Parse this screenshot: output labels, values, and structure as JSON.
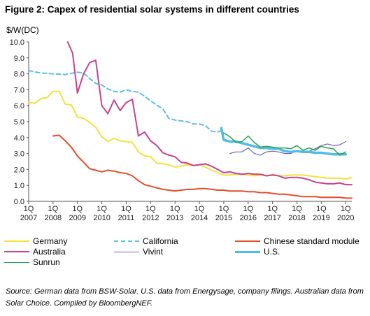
{
  "figure": {
    "title": "Figure 2: Capex of residential solar systems in different countries",
    "source": "Source: German data from BSW-Solar. U.S. data from Energysage, company filings. Australian data from Solar Choice. Compiled by BloombergNEF."
  },
  "chart_data": {
    "type": "line",
    "ylabel": "$/W(DC)",
    "xlabel": "",
    "ylim": [
      0,
      10
    ],
    "xlim": [
      2007.0,
      2020.25
    ],
    "y_ticks": [
      "0.0",
      "1.0",
      "2.0",
      "3.0",
      "4.0",
      "5.0",
      "6.0",
      "7.0",
      "8.0",
      "9.0",
      "10.0"
    ],
    "x_ticks": [
      {
        "q": "1Q",
        "year": "2007"
      },
      {
        "q": "1Q",
        "year": "2008"
      },
      {
        "q": "1Q",
        "year": "2009"
      },
      {
        "q": "1Q",
        "year": "2010"
      },
      {
        "q": "1Q",
        "year": "2011"
      },
      {
        "q": "1Q",
        "year": "2012"
      },
      {
        "q": "1Q",
        "year": "2013"
      },
      {
        "q": "1Q",
        "year": "2014"
      },
      {
        "q": "1Q",
        "year": "2015"
      },
      {
        "q": "1Q",
        "year": "2016"
      },
      {
        "q": "1Q",
        "year": "2017"
      },
      {
        "q": "1Q",
        "year": "2018"
      },
      {
        "q": "1Q",
        "year": "2019"
      },
      {
        "q": "1Q",
        "year": "2020"
      }
    ],
    "grid": false,
    "legend_position": "bottom",
    "series": [
      {
        "name": "Germany",
        "color": "#f2e23a",
        "dash": false,
        "width": 2,
        "x": [
          2007.0,
          2007.25,
          2007.5,
          2007.75,
          2008.0,
          2008.25,
          2008.5,
          2008.75,
          2009.0,
          2009.25,
          2009.5,
          2009.75,
          2010.0,
          2010.25,
          2010.5,
          2010.75,
          2011.0,
          2011.25,
          2011.5,
          2011.75,
          2012.0,
          2012.25,
          2012.5,
          2012.75,
          2013.0,
          2013.25,
          2013.5,
          2013.75,
          2014.0,
          2014.25,
          2014.5,
          2014.75,
          2015.0,
          2015.25,
          2015.5,
          2015.75,
          2016.0,
          2016.25,
          2016.5,
          2016.75,
          2017.0,
          2017.25,
          2017.5,
          2017.75,
          2018.0,
          2018.25,
          2018.5,
          2018.75,
          2019.0,
          2019.25,
          2019.5,
          2019.75,
          2020.0,
          2020.25
        ],
        "y": [
          6.2,
          6.15,
          6.45,
          6.5,
          6.9,
          6.9,
          6.1,
          6.05,
          5.3,
          5.2,
          4.95,
          4.65,
          4.05,
          3.75,
          3.95,
          3.8,
          3.75,
          3.7,
          3.1,
          2.85,
          2.8,
          2.4,
          2.35,
          2.3,
          2.15,
          2.2,
          2.3,
          2.25,
          2.3,
          2.15,
          1.95,
          1.8,
          1.65,
          1.65,
          1.7,
          1.7,
          1.65,
          1.6,
          1.65,
          1.6,
          1.7,
          1.6,
          1.6,
          1.65,
          1.65,
          1.65,
          1.6,
          1.55,
          1.5,
          1.45,
          1.45,
          1.45,
          1.4,
          1.5
        ]
      },
      {
        "name": "California",
        "color": "#5bc0e6",
        "dash": true,
        "width": 2,
        "x": [
          2007.0,
          2007.5,
          2008.0,
          2008.5,
          2009.0,
          2009.25,
          2009.5,
          2009.75,
          2010.0,
          2010.25,
          2010.5,
          2010.75,
          2011.0,
          2011.25,
          2011.5,
          2011.75,
          2012.0,
          2012.25,
          2012.5,
          2012.75,
          2013.0,
          2013.25,
          2013.5,
          2013.75,
          2014.0,
          2014.25,
          2014.5,
          2014.75,
          2015.0
        ],
        "y": [
          8.2,
          8.05,
          8.0,
          7.95,
          8.1,
          8.05,
          7.7,
          7.4,
          7.3,
          7.05,
          6.9,
          6.85,
          7.0,
          6.9,
          6.85,
          6.6,
          6.3,
          6.05,
          5.8,
          5.2,
          5.1,
          5.05,
          5.0,
          4.85,
          4.85,
          4.75,
          4.4,
          4.35,
          4.5
        ]
      },
      {
        "name": "Chinese standard module",
        "color": "#e74c2e",
        "dash": false,
        "width": 2,
        "x": [
          2008.0,
          2008.25,
          2008.5,
          2008.75,
          2009.0,
          2009.25,
          2009.5,
          2009.75,
          2010.0,
          2010.25,
          2010.5,
          2010.75,
          2011.0,
          2011.25,
          2011.5,
          2011.75,
          2012.0,
          2012.25,
          2012.5,
          2012.75,
          2013.0,
          2013.25,
          2013.5,
          2013.75,
          2014.0,
          2014.25,
          2014.5,
          2014.75,
          2015.0,
          2015.25,
          2015.5,
          2015.75,
          2016.0,
          2016.25,
          2016.5,
          2016.75,
          2017.0,
          2017.25,
          2017.5,
          2017.75,
          2018.0,
          2018.25,
          2018.5,
          2018.75,
          2019.0,
          2019.25,
          2019.5,
          2019.75,
          2020.0,
          2020.25
        ],
        "y": [
          4.1,
          4.15,
          3.8,
          3.4,
          2.85,
          2.45,
          2.05,
          1.95,
          1.85,
          1.95,
          1.9,
          1.8,
          1.75,
          1.6,
          1.3,
          1.05,
          0.95,
          0.85,
          0.75,
          0.7,
          0.65,
          0.7,
          0.75,
          0.75,
          0.8,
          0.8,
          0.75,
          0.7,
          0.7,
          0.65,
          0.65,
          0.65,
          0.6,
          0.6,
          0.55,
          0.55,
          0.5,
          0.45,
          0.45,
          0.4,
          0.35,
          0.3,
          0.3,
          0.3,
          0.25,
          0.25,
          0.25,
          0.25,
          0.2,
          0.2
        ]
      },
      {
        "name": "Australia",
        "color": "#c9418f",
        "dash": false,
        "width": 2,
        "x": [
          2008.6,
          2008.8,
          2009.0,
          2009.25,
          2009.5,
          2009.75,
          2010.0,
          2010.25,
          2010.5,
          2010.75,
          2011.0,
          2011.25,
          2011.5,
          2011.75,
          2012.0,
          2012.25,
          2012.5,
          2012.75,
          2013.0,
          2013.25,
          2013.5,
          2013.75,
          2014.0,
          2014.25,
          2014.5,
          2014.75,
          2015.0,
          2015.25,
          2015.5,
          2015.75,
          2016.0,
          2016.25,
          2016.5,
          2016.75,
          2017.0,
          2017.25,
          2017.5,
          2017.75,
          2018.0,
          2018.25,
          2018.5,
          2018.75,
          2019.0,
          2019.25,
          2019.5,
          2019.75,
          2020.0,
          2020.25
        ],
        "y": [
          10.0,
          9.3,
          6.8,
          8.0,
          8.7,
          8.85,
          6.0,
          5.5,
          6.35,
          5.7,
          6.2,
          6.4,
          4.1,
          4.35,
          3.8,
          3.5,
          3.05,
          2.9,
          2.8,
          2.45,
          2.4,
          2.25,
          2.3,
          2.35,
          2.2,
          2.0,
          1.8,
          1.85,
          1.75,
          1.7,
          1.75,
          1.7,
          1.7,
          1.6,
          1.65,
          1.6,
          1.45,
          1.5,
          1.5,
          1.45,
          1.35,
          1.2,
          1.15,
          1.1,
          1.1,
          1.15,
          1.05,
          1.05
        ]
      },
      {
        "name": "Vivint",
        "color": "#6a63b4",
        "dash": false,
        "width": 1.2,
        "x": [
          2015.25,
          2015.5,
          2015.75,
          2016.0,
          2016.25,
          2016.5,
          2016.75,
          2017.0,
          2017.25,
          2017.5,
          2017.75,
          2018.0,
          2018.25,
          2018.5,
          2018.75,
          2019.0,
          2019.25,
          2019.5,
          2019.75,
          2020.0
        ],
        "y": [
          3.0,
          3.1,
          3.1,
          3.35,
          3.0,
          2.9,
          3.1,
          3.15,
          3.1,
          3.0,
          3.0,
          3.2,
          3.1,
          3.15,
          3.3,
          3.5,
          3.6,
          3.5,
          3.55,
          3.75
        ]
      },
      {
        "name": "U.S.",
        "color": "#4fbde6",
        "dash": false,
        "width": 3.5,
        "x": [
          2014.9,
          2015.0,
          2015.25,
          2015.5,
          2015.75,
          2016.0,
          2016.25,
          2016.5,
          2016.75,
          2017.0,
          2017.25,
          2017.5,
          2017.75,
          2018.0,
          2018.25,
          2018.5,
          2018.75,
          2019.0,
          2019.25,
          2019.5,
          2019.75,
          2020.0
        ],
        "y": [
          4.6,
          3.85,
          3.75,
          3.75,
          3.65,
          3.55,
          3.45,
          3.35,
          3.35,
          3.3,
          3.3,
          3.15,
          3.1,
          3.15,
          3.1,
          3.1,
          3.05,
          3.05,
          3.0,
          2.95,
          2.95,
          2.95
        ]
      },
      {
        "name": "Sunrun",
        "color": "#2ca24e",
        "dash": false,
        "width": 1.5,
        "x": [
          2015.0,
          2015.25,
          2015.5,
          2015.75,
          2016.0,
          2016.25,
          2016.5,
          2016.75,
          2017.0,
          2017.25,
          2017.5,
          2017.75,
          2018.0,
          2018.25,
          2018.5,
          2018.75,
          2019.0,
          2019.25,
          2019.5,
          2019.75,
          2020.0
        ],
        "y": [
          4.3,
          4.05,
          3.7,
          3.75,
          4.1,
          3.7,
          3.4,
          3.45,
          3.4,
          3.35,
          3.35,
          3.3,
          3.5,
          3.2,
          3.35,
          3.2,
          3.45,
          3.35,
          3.3,
          2.9,
          3.1
        ]
      }
    ]
  }
}
